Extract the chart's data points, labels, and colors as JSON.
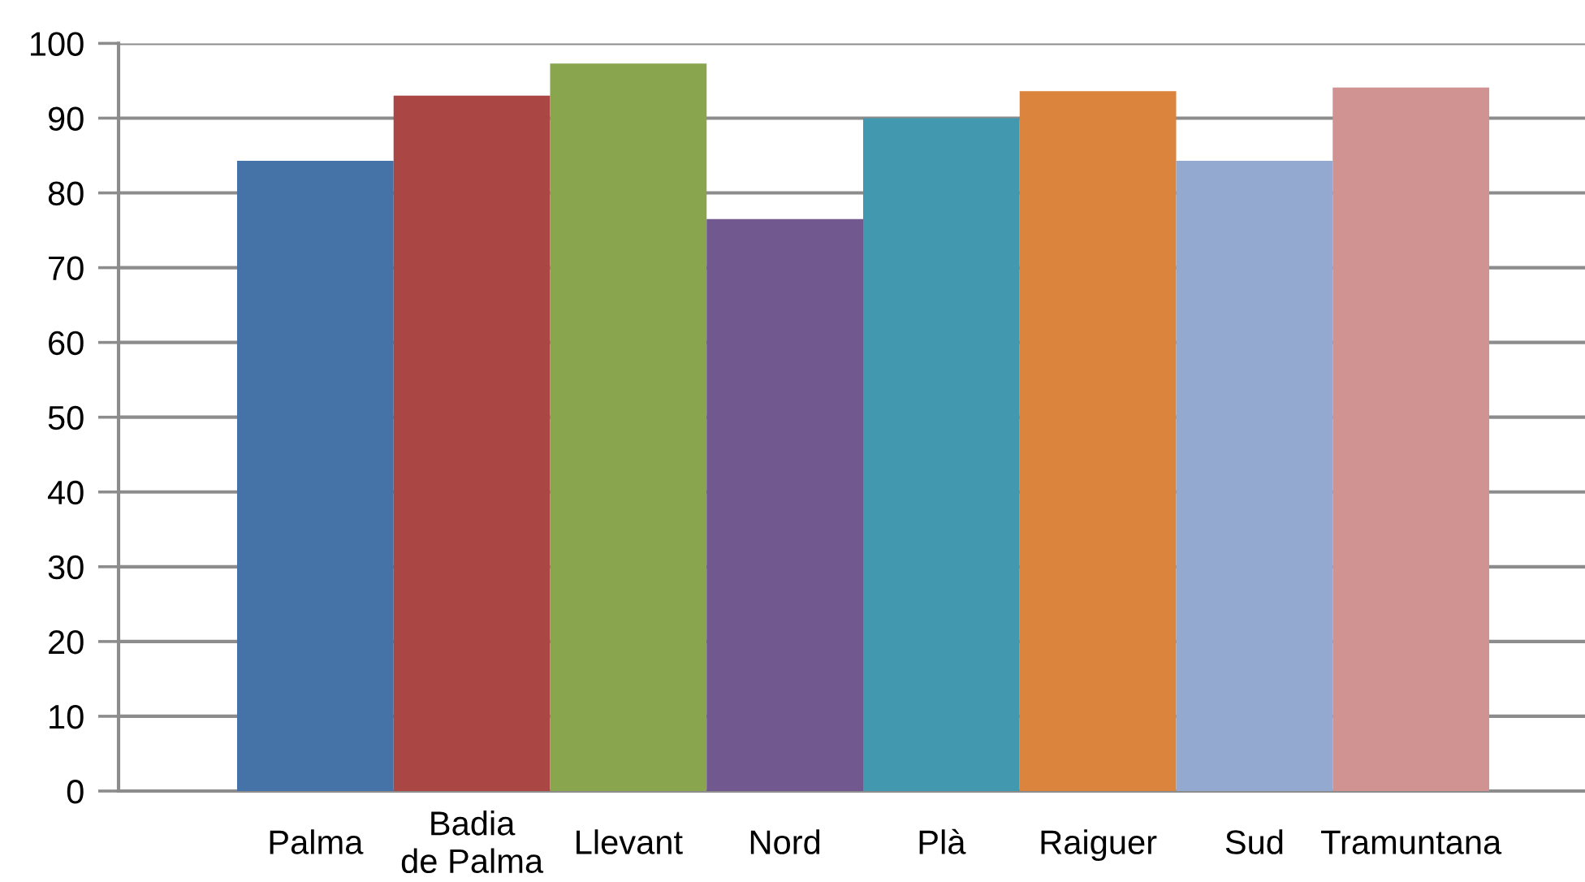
{
  "chart_data": {
    "type": "bar",
    "categories": [
      "Palma",
      "Badia\nde Palma",
      "Llevant",
      "Nord",
      "Plà",
      "Raiguer",
      "Sud",
      "Tramuntana"
    ],
    "values": [
      84.3,
      93.0,
      97.3,
      76.5,
      90.0,
      93.6,
      84.3,
      94.1
    ],
    "colors": [
      "#4572a7",
      "#aa4643",
      "#89a54e",
      "#71588f",
      "#4198af",
      "#db843d",
      "#93a9cf",
      "#d19392"
    ],
    "ylim": [
      0,
      100
    ],
    "yticks": [
      0,
      10,
      20,
      30,
      40,
      50,
      60,
      70,
      80,
      90,
      100
    ],
    "grid": "y"
  }
}
